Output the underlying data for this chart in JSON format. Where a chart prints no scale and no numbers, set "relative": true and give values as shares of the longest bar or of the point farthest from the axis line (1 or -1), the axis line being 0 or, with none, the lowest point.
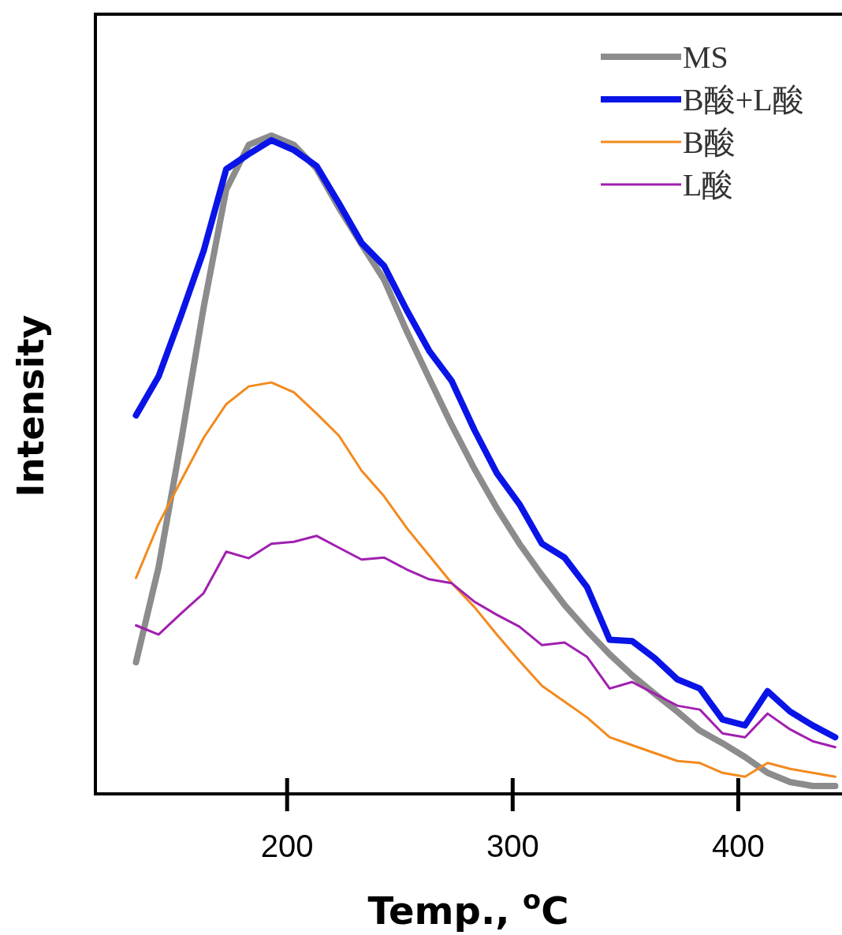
{
  "chart_data": {
    "type": "line",
    "relative": true,
    "xlabel": "Temp., $^{o}$C",
    "ylabel": "Intensity",
    "xlim": [
      115,
      446
    ],
    "xticks": [
      200,
      300,
      400
    ],
    "legend": "top right",
    "grid": false,
    "marker": "none",
    "line_style": "solid",
    "x": [
      133,
      143,
      153,
      163,
      173,
      183,
      193,
      203,
      213,
      223,
      233,
      243,
      253,
      263,
      273,
      283,
      293,
      303,
      313,
      323,
      333,
      343,
      353,
      363,
      373,
      383,
      393,
      403,
      413,
      423,
      433,
      443
    ],
    "series": [
      {
        "name": "MS",
        "color": "#8c8c8c",
        "values": [
          0.2,
          0.344,
          0.536,
          0.739,
          0.918,
          0.986,
          1.0,
          0.986,
          0.95,
          0.89,
          0.835,
          0.781,
          0.703,
          0.631,
          0.56,
          0.494,
          0.434,
          0.38,
          0.332,
          0.287,
          0.248,
          0.212,
          0.18,
          0.152,
          0.125,
          0.096,
          0.077,
          0.056,
          0.032,
          0.018,
          0.012,
          0.012
        ]
      },
      {
        "name": "B酸+L酸",
        "color": "#0a14e6",
        "values": [
          0.575,
          0.634,
          0.727,
          0.825,
          0.949,
          0.972,
          0.993,
          0.978,
          0.954,
          0.897,
          0.837,
          0.802,
          0.735,
          0.673,
          0.627,
          0.553,
          0.487,
          0.44,
          0.38,
          0.359,
          0.314,
          0.234,
          0.232,
          0.206,
          0.174,
          0.16,
          0.113,
          0.104,
          0.156,
          0.125,
          0.104,
          0.086
        ]
      },
      {
        "name": "B酸",
        "color": "#f28a1e",
        "values": [
          0.328,
          0.41,
          0.476,
          0.541,
          0.592,
          0.619,
          0.625,
          0.61,
          0.578,
          0.544,
          0.491,
          0.452,
          0.404,
          0.362,
          0.32,
          0.284,
          0.242,
          0.202,
          0.164,
          0.14,
          0.116,
          0.086,
          0.074,
          0.062,
          0.05,
          0.047,
          0.032,
          0.026,
          0.047,
          0.038,
          0.032,
          0.026
        ]
      },
      {
        "name": "L酸",
        "color": "#a020b0",
        "values": [
          0.256,
          0.242,
          0.274,
          0.305,
          0.368,
          0.358,
          0.38,
          0.383,
          0.392,
          0.374,
          0.356,
          0.359,
          0.341,
          0.326,
          0.32,
          0.292,
          0.272,
          0.254,
          0.226,
          0.23,
          0.208,
          0.16,
          0.17,
          0.152,
          0.134,
          0.128,
          0.092,
          0.086,
          0.122,
          0.098,
          0.08,
          0.071
        ]
      }
    ]
  }
}
